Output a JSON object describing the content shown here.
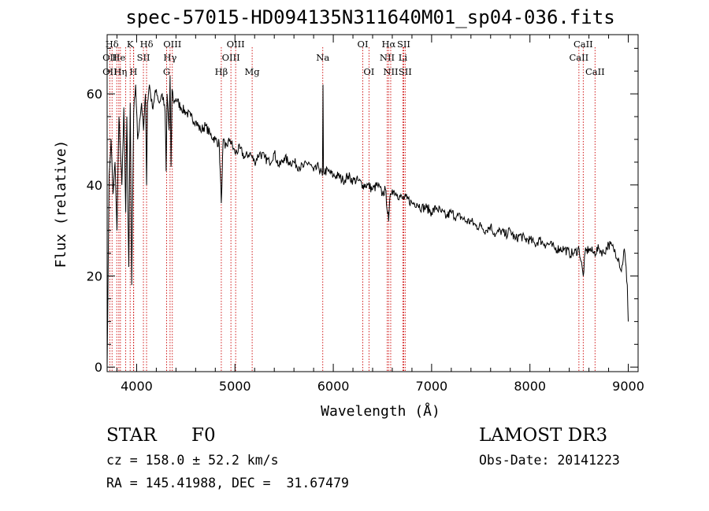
{
  "title": "spec-57015-HD094135N311640M01_sp04-036.fits",
  "chart_data": {
    "type": "line",
    "title": "spec-57015-HD094135N311640M01_sp04-036.fits",
    "xlabel": "Wavelength (Å)",
    "ylabel": "Flux (relative)",
    "xlim": [
      3700,
      9100
    ],
    "ylim": [
      -1,
      73
    ],
    "x_ticks": [
      4000,
      5000,
      6000,
      7000,
      8000,
      9000
    ],
    "x_tick_labels": [
      "4000",
      "5000",
      "6000",
      "7000",
      "8000",
      "9000"
    ],
    "y_ticks": [
      0,
      20,
      40,
      60
    ],
    "y_tick_labels": [
      "0",
      "20",
      "40",
      "60"
    ],
    "series": [
      {
        "name": "spectrum",
        "x": [
          3700,
          3720,
          3740,
          3760,
          3780,
          3800,
          3820,
          3835,
          3850,
          3870,
          3889,
          3900,
          3920,
          3935,
          3950,
          3970,
          3990,
          4010,
          4030,
          4050,
          4070,
          4090,
          4101,
          4110,
          4130,
          4160,
          4200,
          4230,
          4260,
          4290,
          4300,
          4310,
          4330,
          4340,
          4350,
          4360,
          4380,
          4400,
          4450,
          4500,
          4550,
          4600,
          4650,
          4700,
          4750,
          4800,
          4840,
          4861,
          4880,
          4900,
          4950,
          5000,
          5050,
          5100,
          5150,
          5200,
          5250,
          5300,
          5350,
          5400,
          5450,
          5500,
          5550,
          5600,
          5650,
          5700,
          5750,
          5800,
          5850,
          5890,
          5895,
          5900,
          5950,
          6000,
          6050,
          6100,
          6150,
          6200,
          6250,
          6300,
          6350,
          6400,
          6450,
          6500,
          6530,
          6563,
          6580,
          6600,
          6650,
          6700,
          6750,
          6800,
          6850,
          6900,
          6950,
          7000,
          7050,
          7100,
          7150,
          7200,
          7250,
          7300,
          7350,
          7400,
          7450,
          7500,
          7550,
          7600,
          7650,
          7700,
          7750,
          7800,
          7850,
          7900,
          7950,
          8000,
          8050,
          8100,
          8150,
          8200,
          8250,
          8300,
          8350,
          8400,
          8450,
          8500,
          8542,
          8560,
          8600,
          8650,
          8700,
          8750,
          8800,
          8850,
          8900,
          8930,
          8960,
          8990,
          9000
        ],
        "y": [
          0,
          42,
          50,
          38,
          45,
          30,
          55,
          48,
          40,
          57,
          34,
          55,
          22,
          58,
          18,
          56,
          62,
          50,
          54,
          58,
          52,
          60,
          40,
          58,
          62,
          57,
          61,
          58,
          60,
          56,
          43,
          60,
          52,
          64,
          44,
          61,
          58,
          59,
          57,
          56,
          55,
          54,
          52,
          53,
          51,
          50,
          49,
          36,
          50,
          48,
          50,
          47,
          48,
          46,
          47,
          45,
          47,
          46,
          45,
          47,
          44,
          46,
          45,
          45,
          44,
          44,
          45,
          43,
          44,
          42,
          62,
          43,
          43,
          42,
          42,
          41,
          42,
          41,
          41,
          40,
          40,
          39,
          40,
          38,
          39,
          32,
          38,
          39,
          38,
          37,
          37,
          36,
          36,
          35,
          35,
          34,
          35,
          34,
          33,
          34,
          33,
          33,
          32,
          32,
          31,
          31,
          30,
          31,
          29,
          30,
          29,
          30,
          28,
          29,
          28,
          28,
          27,
          28,
          27,
          27,
          26,
          26,
          26,
          25,
          25,
          26,
          20,
          25,
          26,
          25,
          26,
          25,
          27,
          26,
          24,
          21,
          26,
          18,
          10
        ]
      }
    ],
    "lines": [
      {
        "label": "Hδ",
        "wl": 3750,
        "row": 1
      },
      {
        "label": "K",
        "wl": 3934,
        "row": 1
      },
      {
        "label": "Hδ",
        "wl": 4101,
        "row": 1
      },
      {
        "label": "OIII",
        "wl": 4363,
        "row": 1
      },
      {
        "label": "OIII",
        "wl": 5007,
        "row": 1
      },
      {
        "label": "OI",
        "wl": 6300,
        "row": 1
      },
      {
        "label": "Hα",
        "wl": 6563,
        "row": 1
      },
      {
        "label": "SII",
        "wl": 6716,
        "row": 1
      },
      {
        "label": "CaII",
        "wl": 8542,
        "row": 1
      },
      {
        "label": "OII",
        "wl": 3727,
        "row": 2
      },
      {
        "label": "He",
        "wl": 3819,
        "row": 2
      },
      {
        "label": "SII",
        "wl": 4069,
        "row": 2
      },
      {
        "label": "Hγ",
        "wl": 4340,
        "row": 2
      },
      {
        "label": "OIII",
        "wl": 4959,
        "row": 2
      },
      {
        "label": "Na",
        "wl": 5893,
        "row": 2
      },
      {
        "label": "NII",
        "wl": 6548,
        "row": 2
      },
      {
        "label": "Li",
        "wl": 6708,
        "row": 2
      },
      {
        "label": "CaII",
        "wl": 8498,
        "row": 2
      },
      {
        "label": "OII",
        "wl": 3727,
        "row": 3
      },
      {
        "label": "Hη",
        "wl": 3835,
        "row": 3
      },
      {
        "label": "H",
        "wl": 3968,
        "row": 3
      },
      {
        "label": "G",
        "wl": 4305,
        "row": 3
      },
      {
        "label": "Hβ",
        "wl": 4861,
        "row": 3
      },
      {
        "label": "Mg",
        "wl": 5175,
        "row": 3
      },
      {
        "label": "OI",
        "wl": 6363,
        "row": 3
      },
      {
        "label": "NII",
        "wl": 6584,
        "row": 3
      },
      {
        "label": "SII",
        "wl": 6731,
        "row": 3
      },
      {
        "label": "CaII",
        "wl": 8662,
        "row": 3
      }
    ],
    "extra_line_positions": [
      3798,
      3889,
      3970
    ]
  },
  "info": {
    "class": "STAR",
    "subclass": "F0",
    "survey": "LAMOST DR3",
    "cz": "cz = 158.0 ± 52.2 km/s",
    "obs_date": "Obs-Date: 20141223",
    "coords": "RA = 145.41988, DEC =  31.67479"
  }
}
